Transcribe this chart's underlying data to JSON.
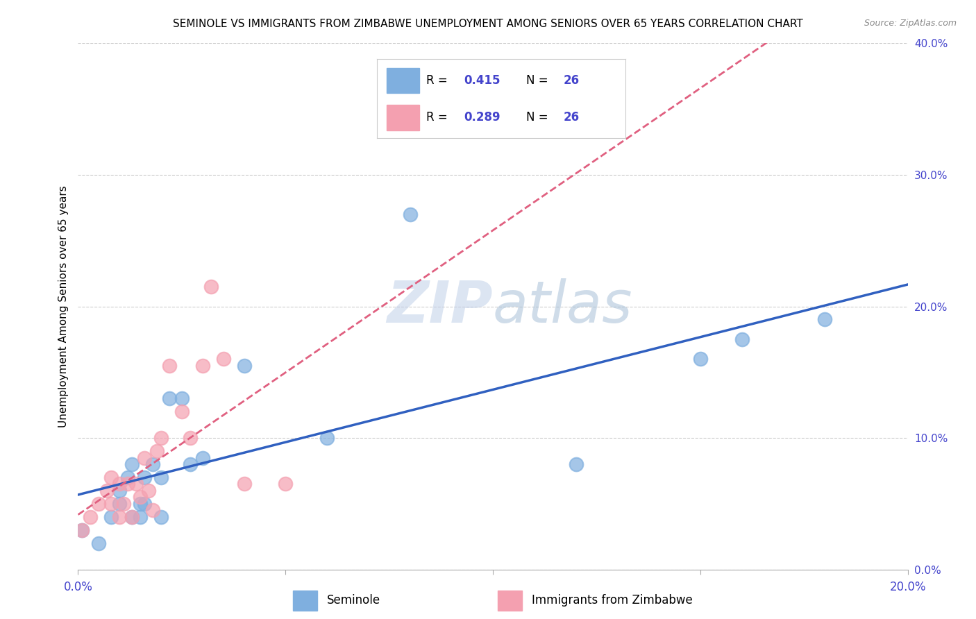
{
  "title": "SEMINOLE VS IMMIGRANTS FROM ZIMBABWE UNEMPLOYMENT AMONG SENIORS OVER 65 YEARS CORRELATION CHART",
  "source": "Source: ZipAtlas.com",
  "ylabel": "Unemployment Among Seniors over 65 years",
  "right_ytick_vals": [
    0,
    0.1,
    0.2,
    0.3,
    0.4
  ],
  "xlim": [
    0,
    0.2
  ],
  "ylim": [
    0,
    0.4
  ],
  "seminole_color": "#7fafdf",
  "zimbabwe_color": "#f4a0b0",
  "seminole_line_color": "#3060c0",
  "zimbabwe_line_color": "#e06080",
  "seminole_R": 0.415,
  "seminole_N": 26,
  "zimbabwe_R": 0.289,
  "zimbabwe_N": 26,
  "watermark_zip": "ZIP",
  "watermark_atlas": "atlas",
  "seminole_x": [
    0.001,
    0.005,
    0.008,
    0.01,
    0.01,
    0.012,
    0.013,
    0.013,
    0.015,
    0.015,
    0.016,
    0.016,
    0.018,
    0.02,
    0.02,
    0.022,
    0.025,
    0.027,
    0.03,
    0.04,
    0.06,
    0.08,
    0.12,
    0.15,
    0.16,
    0.18
  ],
  "seminole_y": [
    0.03,
    0.02,
    0.04,
    0.05,
    0.06,
    0.07,
    0.04,
    0.08,
    0.05,
    0.04,
    0.07,
    0.05,
    0.08,
    0.04,
    0.07,
    0.13,
    0.13,
    0.08,
    0.085,
    0.155,
    0.1,
    0.27,
    0.08,
    0.16,
    0.175,
    0.19
  ],
  "zimbabwe_x": [
    0.001,
    0.003,
    0.005,
    0.007,
    0.008,
    0.008,
    0.01,
    0.01,
    0.011,
    0.012,
    0.013,
    0.014,
    0.015,
    0.016,
    0.017,
    0.018,
    0.019,
    0.02,
    0.022,
    0.025,
    0.027,
    0.03,
    0.032,
    0.035,
    0.04,
    0.05
  ],
  "zimbabwe_y": [
    0.03,
    0.04,
    0.05,
    0.06,
    0.05,
    0.07,
    0.065,
    0.04,
    0.05,
    0.065,
    0.04,
    0.065,
    0.055,
    0.085,
    0.06,
    0.045,
    0.09,
    0.1,
    0.155,
    0.12,
    0.1,
    0.155,
    0.215,
    0.16,
    0.065,
    0.065
  ],
  "legend_label_seminole": "Seminole",
  "legend_label_zimbabwe": "Immigrants from Zimbabwe",
  "background_color": "#ffffff",
  "grid_color": "#cccccc",
  "label_color": "#4444cc",
  "tick_color": "#aaaaaa"
}
